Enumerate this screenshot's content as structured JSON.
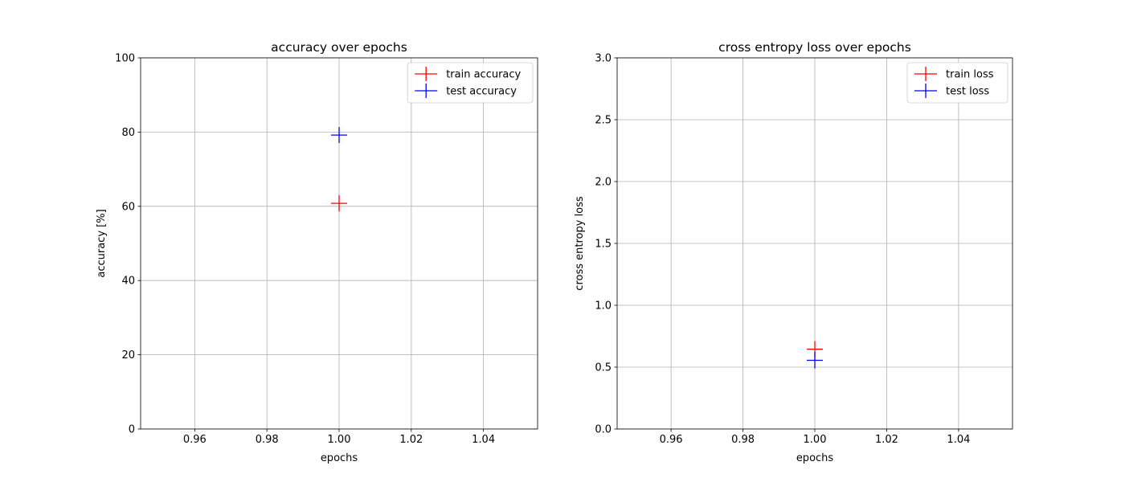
{
  "chart_data": [
    {
      "type": "scatter",
      "title": "accuracy over epochs",
      "xlabel": "epochs",
      "ylabel": "accuracy [%]",
      "xlim": [
        0.945,
        1.055
      ],
      "ylim": [
        0,
        100
      ],
      "xticks": [
        0.96,
        0.98,
        1.0,
        1.02,
        1.04
      ],
      "xtick_labels": [
        "0.96",
        "0.98",
        "1.00",
        "1.02",
        "1.04"
      ],
      "yticks": [
        0,
        20,
        40,
        60,
        80,
        100
      ],
      "ytick_labels": [
        "0",
        "20",
        "40",
        "60",
        "80",
        "100"
      ],
      "grid": true,
      "legend_position": "upper right",
      "series": [
        {
          "name": "train accuracy",
          "color": "#ff0000",
          "marker": "plus",
          "x": [
            1.0
          ],
          "y": [
            60.8
          ]
        },
        {
          "name": "test accuracy",
          "color": "#0000ff",
          "marker": "plus",
          "x": [
            1.0
          ],
          "y": [
            79.2
          ]
        }
      ]
    },
    {
      "type": "scatter",
      "title": "cross entropy loss over epochs",
      "xlabel": "epochs",
      "ylabel": "cross entropy loss",
      "xlim": [
        0.945,
        1.055
      ],
      "ylim": [
        0,
        3
      ],
      "xticks": [
        0.96,
        0.98,
        1.0,
        1.02,
        1.04
      ],
      "xtick_labels": [
        "0.96",
        "0.98",
        "1.00",
        "1.02",
        "1.04"
      ],
      "yticks": [
        0,
        0.5,
        1,
        1.5,
        2,
        2.5,
        3
      ],
      "ytick_labels": [
        "0.0",
        "0.5",
        "1.0",
        "1.5",
        "2.0",
        "2.5",
        "3.0"
      ],
      "grid": true,
      "legend_position": "upper right",
      "series": [
        {
          "name": "train loss",
          "color": "#ff0000",
          "marker": "plus",
          "x": [
            1.0
          ],
          "y": [
            0.645
          ]
        },
        {
          "name": "test loss",
          "color": "#0000ff",
          "marker": "plus",
          "x": [
            1.0
          ],
          "y": [
            0.555
          ]
        }
      ]
    }
  ]
}
